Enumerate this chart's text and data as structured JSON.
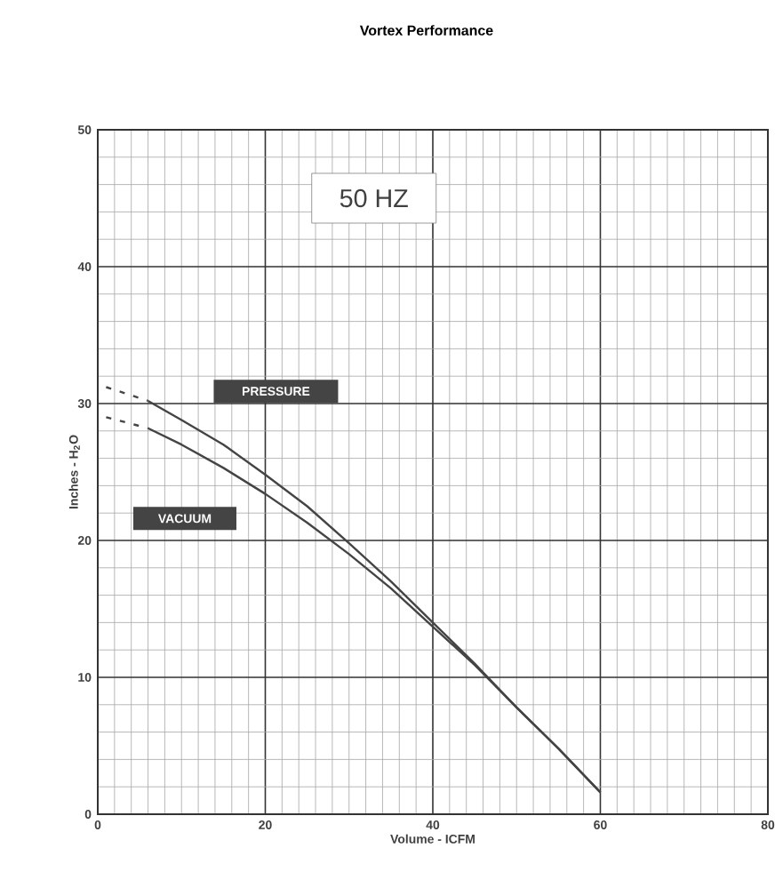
{
  "chart_data": {
    "type": "line",
    "title": "Vortex Performance",
    "xlabel": "Volume - ICFM",
    "ylabel": "Inches - H$_{2}$O",
    "xlim": [
      0,
      80
    ],
    "xticks": [
      0,
      20,
      40,
      60,
      80
    ],
    "ylim": [
      0,
      50
    ],
    "yticks": [
      0,
      10,
      20,
      30,
      40,
      50
    ],
    "grid": true,
    "marker": "none",
    "annotations": [
      "50 HZ"
    ],
    "series": [
      {
        "name": "PRESSURE",
        "color": "#444444",
        "line_style": "solid",
        "x": [
          6,
          10,
          15,
          20,
          25,
          30,
          35,
          40,
          45,
          50,
          55,
          60
        ],
        "values": [
          30.2,
          28.8,
          27,
          24.8,
          22.5,
          19.8,
          17,
          14,
          11,
          7.8,
          4.8,
          1.6
        ]
      },
      {
        "name": "VACUUM",
        "color": "#444444",
        "line_style": "solid",
        "x": [
          6,
          10,
          15,
          20,
          25,
          30,
          35,
          40,
          45,
          50,
          55,
          60
        ],
        "values": [
          28.2,
          27,
          25.3,
          23.4,
          21.3,
          19,
          16.5,
          13.7,
          10.9,
          7.8,
          4.8,
          1.6
        ]
      },
      {
        "color": "#444444",
        "line_style": "dashed",
        "x": [
          1,
          6
        ],
        "values": [
          31.2,
          30.2
        ]
      },
      {
        "color": "#444444",
        "line_style": "dashed",
        "x": [
          1,
          6
        ],
        "values": [
          29,
          28.2
        ]
      }
    ]
  }
}
